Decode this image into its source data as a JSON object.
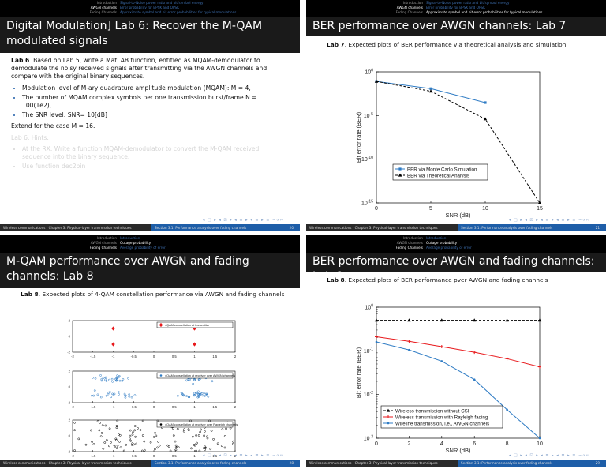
{
  "nav": {
    "left_items": [
      "Introduction",
      "AWGN channels",
      "Fading Channels"
    ],
    "right_items_a": [
      "Signal-to-Noise power ratio and bit/symbol energy",
      "Error probability for BPSK and QPSK",
      "Approximate symbol and bit error probabilities for typical modulations"
    ],
    "right_items_b": [
      "Introduction",
      "Outage probability",
      "Average probability of error"
    ]
  },
  "footer": {
    "left": "Wireless communications - Chapter 3: Physical-layer transmission techniques",
    "right": "Section 3.1: Performance analysis over fading channels",
    "pages": [
      "20",
      "21",
      "28",
      "29"
    ],
    "nav_symbols": "◂ □ ▸ ◂ ⊡ ▸ ◂ ≣ ▸ ◂ ≣ ▸  ≡  ∽∝∾"
  },
  "slide1": {
    "title": "Digital Modulation] Lab 6: Recover the M-QAM modulated signals",
    "lab_label": "Lab 6",
    "intro": ". Based on Lab 5, write a MatLAB function, entitled as MQAM-demodulator to demodulate the noisy received signals after transmitting via the AWGN channels and compare with the original binary sequences.",
    "bullets": [
      "Modulation level of M-ary quadrature amplitude modulation (MQAM): M = 4,",
      "The number of MQAM complex symbols per one transmission burst/frame N = 100(1e2),",
      "The SNR level: SNR= 10[dB]"
    ],
    "extend": "Extend for the case M = 16.",
    "hints_title": "Lab 6. Hints:",
    "hints": [
      "At the RX: Write a function MQAM-demodulator to convert the M-QAM received sequence into the binary sequence.",
      "Use function dec2bin"
    ]
  },
  "slide2": {
    "title": "BER performance over AWGN channels: Lab 7",
    "caption_label": "Lab 7",
    "caption": ". Expected plots of BER performance via theoretical analysis and simulation"
  },
  "slide3": {
    "title": "M-QAM performance over AWGN and fading channels: Lab 8",
    "caption_label": "Lab 8",
    "caption": ". Expected plots of 4-QAM constellation performance via AWGN and fading channels",
    "panel_legends": [
      "4QAM constellation at transmitter",
      "4QAM constellation at receiver over AWGN channels",
      "4QAM constellation at receiver over Rayleigh channels"
    ]
  },
  "slide4": {
    "title": "BER performance over AWGN and fading channels: Lab 8",
    "caption_label": "Lab 8",
    "caption": ". Expected plots of BER performance pver AWGN and fading channels"
  },
  "chart_data": [
    {
      "type": "line",
      "xlabel": "SNR (dB)",
      "ylabel": "Bit error rate (BER)",
      "ylog": true,
      "xlim": [
        0,
        15
      ],
      "ylim": [
        1e-15,
        1
      ],
      "xticks": [
        "0",
        "5",
        "10",
        "15"
      ],
      "yticks": [
        "10^0",
        "10^-5",
        "10^-10",
        "10^-15"
      ],
      "legend_position": "bottom-left",
      "series": [
        {
          "name": "BER via Monte Carlo Simulation",
          "color": "#2e7bc4",
          "marker": "square",
          "dash": false,
          "x": [
            0,
            5,
            10
          ],
          "y": [
            0.08,
            0.012,
            0.0003
          ]
        },
        {
          "name": "BER via Theoretical Analysis",
          "color": "#000000",
          "marker": "triangle",
          "dash": true,
          "x": [
            0,
            5,
            10,
            15
          ],
          "y": [
            0.08,
            0.006,
            4e-06,
            1e-15
          ]
        }
      ]
    },
    {
      "type": "scatter",
      "panels": [
        {
          "name": "4QAM constellation at transmitter",
          "color": "#e8191c",
          "marker": "diamond",
          "points": [
            [
              -1,
              1
            ],
            [
              1,
              1
            ],
            [
              -1,
              -1
            ],
            [
              1,
              -1
            ]
          ]
        },
        {
          "name": "4QAM constellation at receiver over AWGN channels",
          "color": "#2e7bc4",
          "marker": "circle"
        },
        {
          "name": "4QAM constellation at receiver over Rayleigh channels",
          "color": "#000000",
          "marker": "circle"
        }
      ],
      "xlim": [
        -2,
        2
      ],
      "xticks": [
        "-2",
        "-1.5",
        "-1",
        "-0.5",
        "0",
        "0.5",
        "1",
        "1.5",
        "2"
      ]
    },
    {
      "type": "line",
      "xlabel": "SNR (dB)",
      "ylabel": "Bit error rate (BER)",
      "ylog": true,
      "xlim": [
        0,
        10
      ],
      "ylim": [
        0.001,
        1
      ],
      "xticks": [
        "0",
        "2",
        "4",
        "6",
        "8",
        "10"
      ],
      "yticks": [
        "10^0",
        "10^-1",
        "10^-2",
        "10^-3"
      ],
      "legend_position": "bottom-left",
      "series": [
        {
          "name": "Wireless transmission without CSI",
          "color": "#000000",
          "marker": "triangle",
          "dash": true,
          "x": [
            0,
            2,
            4,
            6,
            8,
            10
          ],
          "y": [
            0.5,
            0.5,
            0.5,
            0.5,
            0.5,
            0.5
          ]
        },
        {
          "name": "Wireless transmission with Rayleigh fading",
          "color": "#e8191c",
          "marker": "plus",
          "dash": false,
          "x": [
            0,
            2,
            4,
            6,
            8,
            10
          ],
          "y": [
            0.21,
            0.165,
            0.125,
            0.093,
            0.066,
            0.043
          ]
        },
        {
          "name": "Wireline transmission, i.e., AWGN channels",
          "color": "#2e7bc4",
          "marker": "dot",
          "dash": false,
          "x": [
            0,
            2,
            4,
            6,
            8,
            10
          ],
          "y": [
            0.16,
            0.105,
            0.058,
            0.022,
            0.0045,
            0.001
          ]
        }
      ]
    }
  ]
}
